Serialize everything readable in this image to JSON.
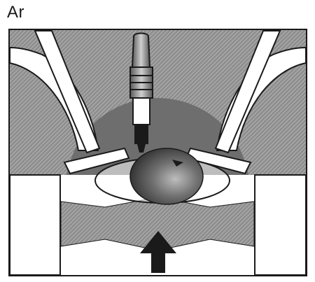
{
  "figure": {
    "label": "Ar"
  },
  "colors": {
    "ink": "#1a1a1a",
    "cylinder_head_gray": "#777777",
    "hatch_gray": "#9a9a9a",
    "paper": "#ffffff"
  },
  "icons": {
    "piston_arrow": "up-arrow-icon"
  }
}
